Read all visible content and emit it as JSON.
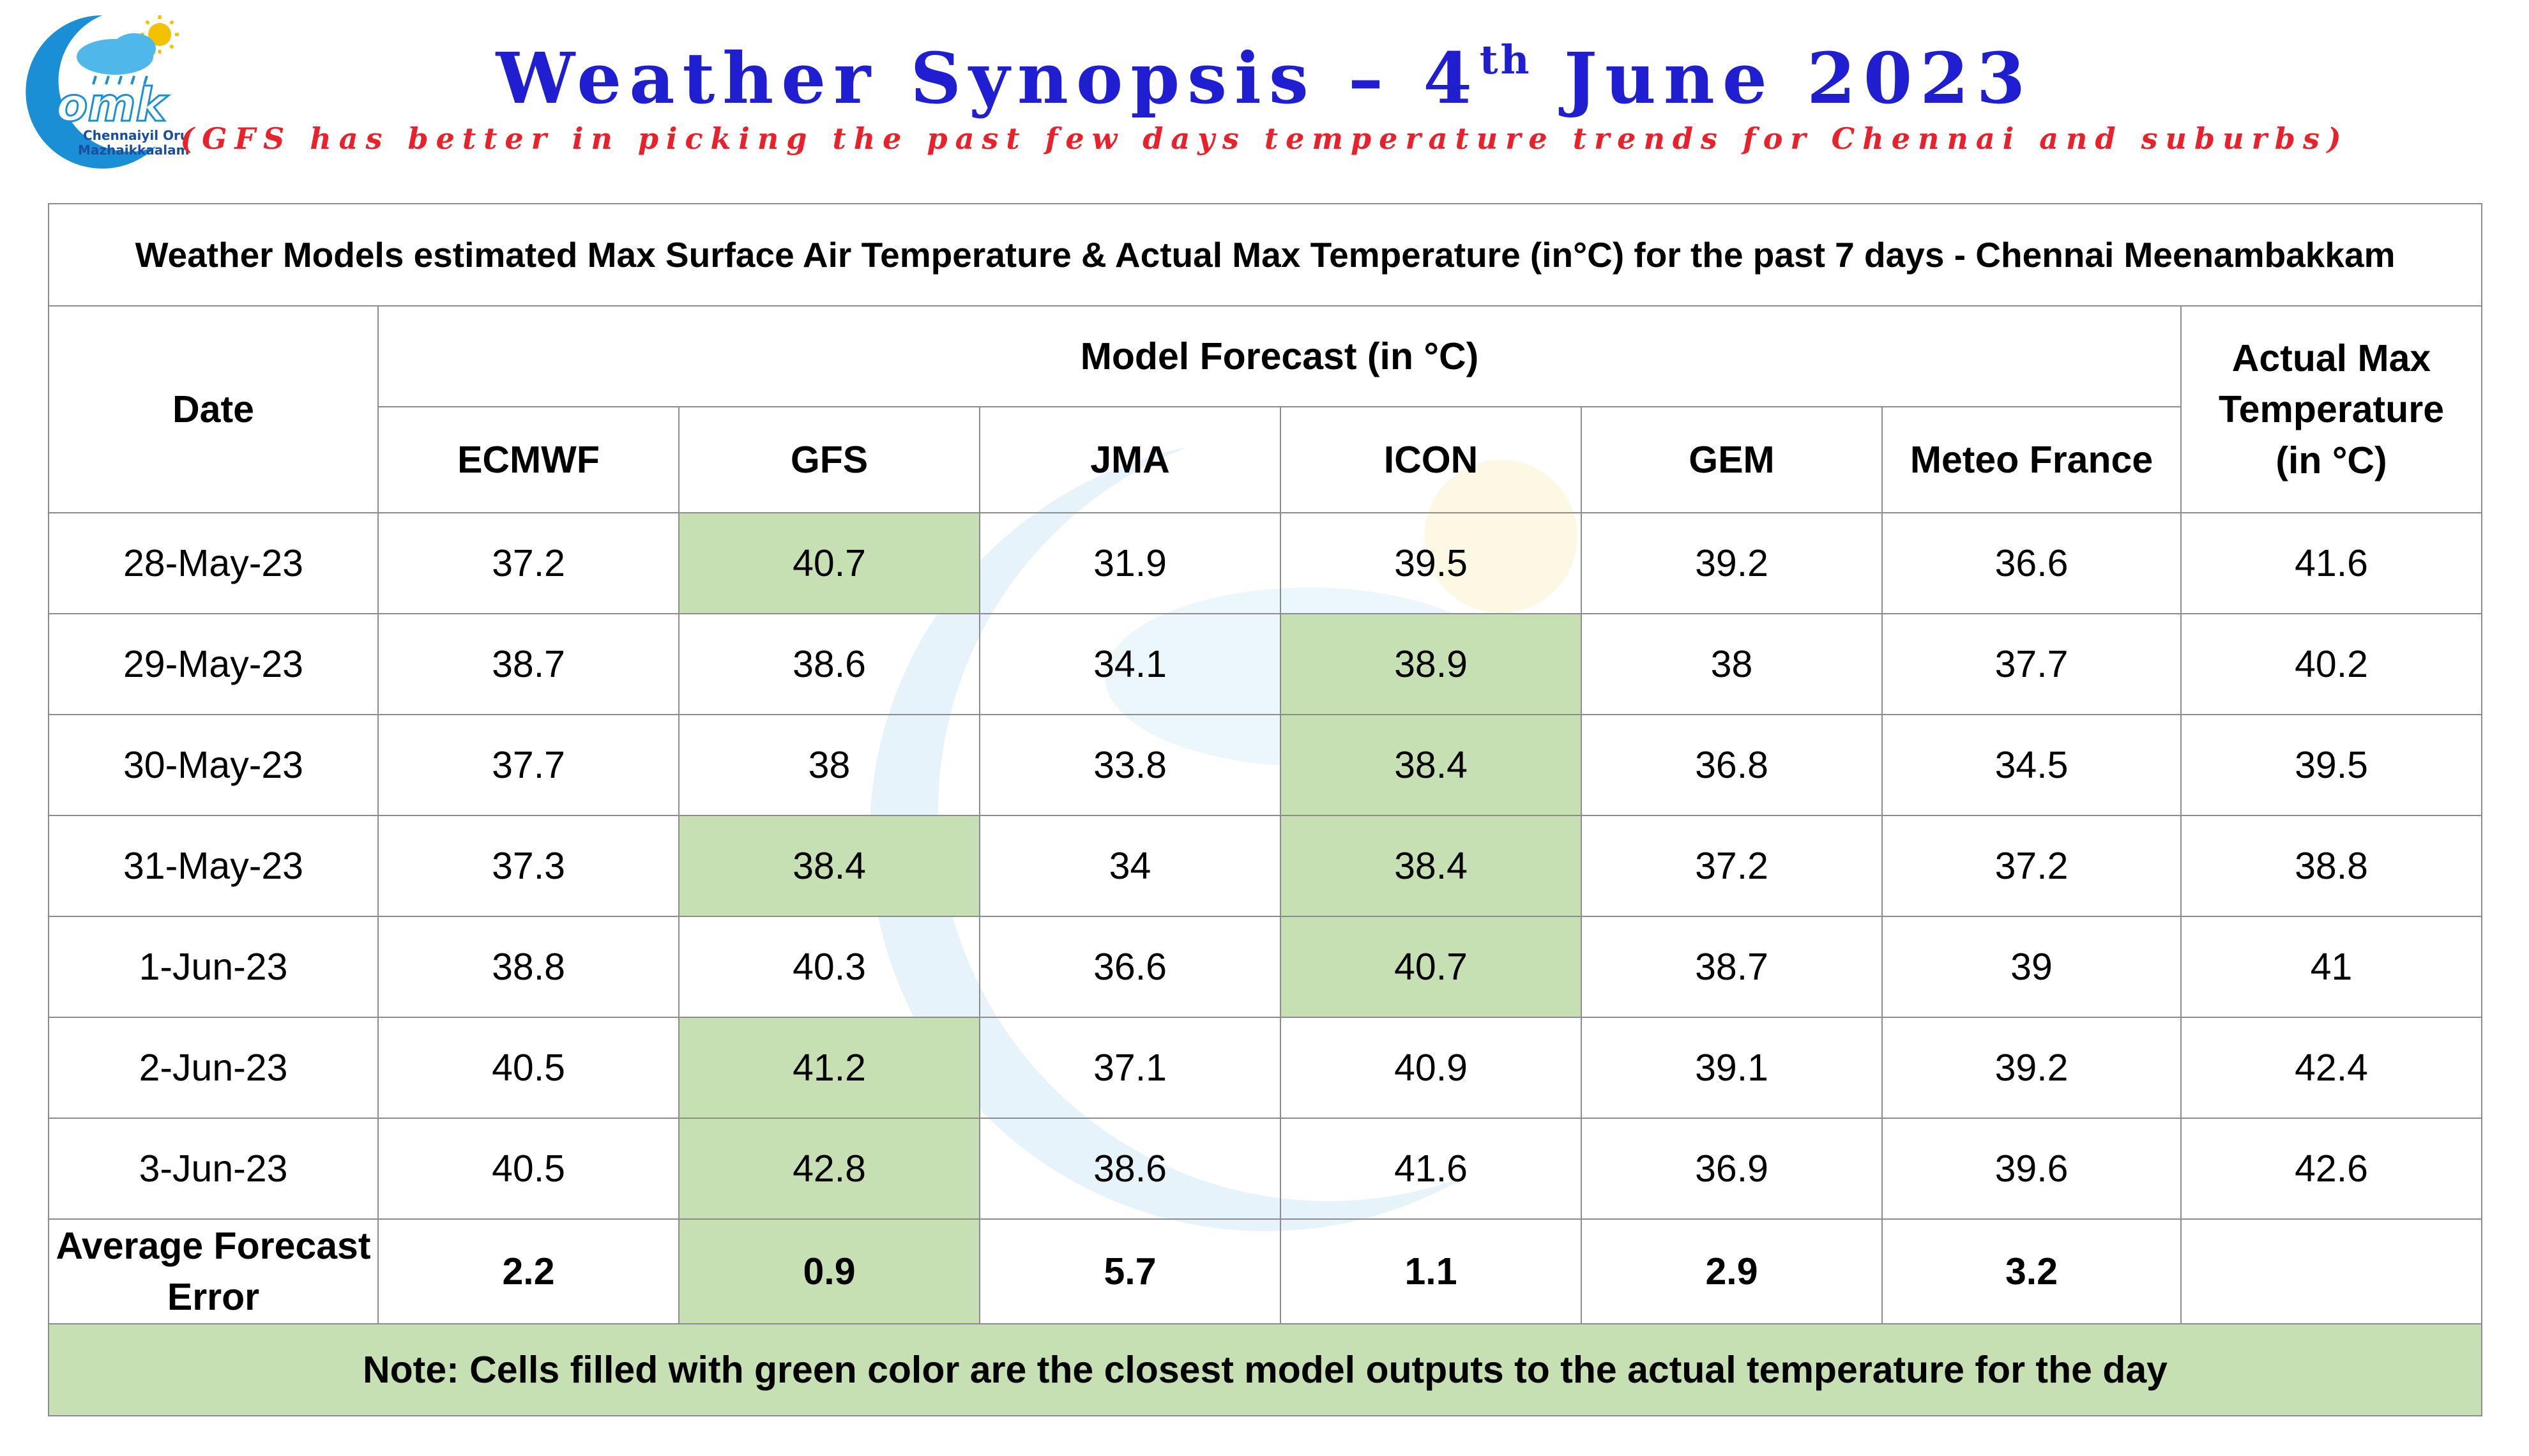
{
  "header": {
    "title_main": "Weather Synopsis – 4",
    "title_sup": "th",
    "title_tail": " June 2023",
    "subtitle": "(GFS has better in picking the past few days temperature trends for Chennai and suburbs)"
  },
  "logo": {
    "text": "omk",
    "line1": "Chennaiyil Oru",
    "line2": "Mazhaikkaalam"
  },
  "table": {
    "caption": "Weather Models estimated Max Surface Air Temperature & Actual Max Temperature (in°C) for the past 7 days - Chennai Meenambakkam",
    "date_header": "Date",
    "model_group_header": "Model Forecast (in °C)",
    "actual_header": "Actual Max Temperature (in °C)",
    "models": [
      "ECMWF",
      "GFS",
      "JMA",
      "ICON",
      "GEM",
      "Meteo France"
    ],
    "rows": [
      {
        "date": "28-May-23",
        "values": [
          "37.2",
          "40.7",
          "31.9",
          "39.5",
          "39.2",
          "36.6"
        ],
        "actual": "41.6"
      },
      {
        "date": "29-May-23",
        "values": [
          "38.7",
          "38.6",
          "34.1",
          "38.9",
          "38",
          "37.7"
        ],
        "actual": "40.2"
      },
      {
        "date": "30-May-23",
        "values": [
          "37.7",
          "38",
          "33.8",
          "38.4",
          "36.8",
          "34.5"
        ],
        "actual": "39.5"
      },
      {
        "date": "31-May-23",
        "values": [
          "37.3",
          "38.4",
          "34",
          "38.4",
          "37.2",
          "37.2"
        ],
        "actual": "38.8"
      },
      {
        "date": "1-Jun-23",
        "values": [
          "38.8",
          "40.3",
          "36.6",
          "40.7",
          "38.7",
          "39"
        ],
        "actual": "41"
      },
      {
        "date": "2-Jun-23",
        "values": [
          "40.5",
          "41.2",
          "37.1",
          "40.9",
          "39.1",
          "39.2"
        ],
        "actual": "42.4"
      },
      {
        "date": "3-Jun-23",
        "values": [
          "40.5",
          "42.8",
          "38.6",
          "41.6",
          "36.9",
          "39.6"
        ],
        "actual": "42.6"
      }
    ],
    "avg_label": "Average Forecast Error",
    "avg_values": [
      "2.2",
      "0.9",
      "5.7",
      "1.1",
      "2.9",
      "3.2"
    ],
    "avg_actual": "",
    "note": "Note: Cells filled with green color are the closest model outputs to the actual temperature for the day"
  },
  "colors": {
    "title": "#1f1fd1",
    "subtitle": "#e8212a",
    "highlight_green": "#c6e0b4",
    "grid_border": "#8c8c8c"
  }
}
